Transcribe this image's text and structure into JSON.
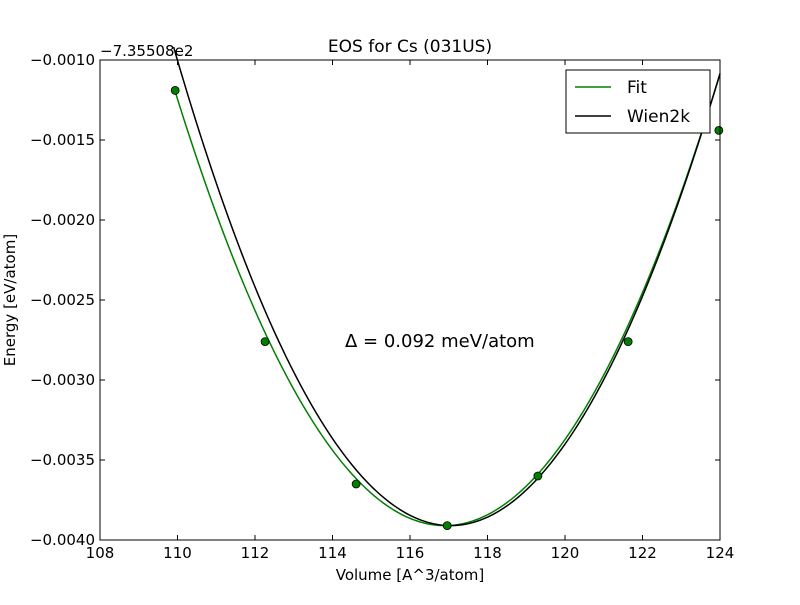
{
  "chart_data": {
    "type": "line",
    "title": "EOS for Cs (031US)",
    "xlabel": "Volume [A^3/atom]",
    "ylabel": "Energy [eV/atom]",
    "y_offset_label": "−7.35508e2",
    "annotation": "Δ = 0.092 meV/atom",
    "xlim": [
      108,
      124
    ],
    "ylim": [
      -0.004,
      -0.001
    ],
    "x_ticks": [
      "108",
      "110",
      "112",
      "114",
      "116",
      "118",
      "120",
      "122",
      "124"
    ],
    "y_ticks": [
      "−0.0040",
      "−0.0035",
      "−0.0030",
      "−0.0025",
      "−0.0020",
      "−0.0015",
      "−0.0010"
    ],
    "legend_position": "top-right",
    "grid": false,
    "series": [
      {
        "name": "Fit",
        "color": "#008000",
        "kind": "quadratic-curve",
        "x_range": [
          109.9,
          124
        ],
        "min_x": 116.9,
        "min_y": -0.00391,
        "curvature": 5.6e-05
      },
      {
        "name": "Wien2k",
        "color": "#000000",
        "kind": "quadratic-curve",
        "x_range": [
          109.9,
          124
        ],
        "min_x": 117.05,
        "min_y": -0.00391,
        "curvature": 5.85e-05
      }
    ],
    "points": {
      "color": "#008000",
      "x": [
        109.94,
        112.26,
        114.61,
        116.96,
        119.3,
        121.63,
        123.97
      ],
      "y": [
        -0.00119,
        -0.00276,
        -0.00365,
        -0.00391,
        -0.0036,
        -0.00276,
        -0.00144
      ]
    }
  }
}
